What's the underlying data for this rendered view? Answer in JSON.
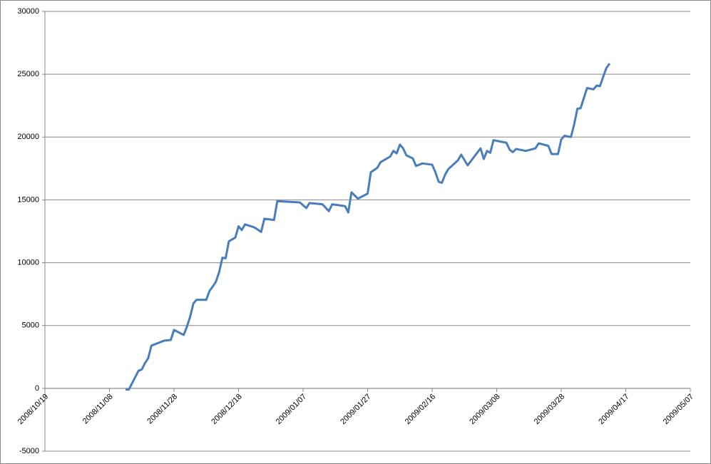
{
  "chart_data": {
    "type": "line",
    "x": [
      "2008/11/13",
      "2008/11/14",
      "2008/11/17",
      "2008/11/18",
      "2008/11/19",
      "2008/11/20",
      "2008/11/21",
      "2008/11/25",
      "2008/11/27",
      "2008/11/28",
      "2008/12/01",
      "2008/12/02",
      "2008/12/03",
      "2008/12/04",
      "2008/12/05",
      "2008/12/08",
      "2008/12/09",
      "2008/12/10",
      "2008/12/11",
      "2008/12/12",
      "2008/12/13",
      "2008/12/14",
      "2008/12/15",
      "2008/12/17",
      "2008/12/18",
      "2008/12/19",
      "2008/12/20",
      "2008/12/23",
      "2008/12/25",
      "2008/12/26",
      "2008/12/29",
      "2008/12/30",
      "2009/01/06",
      "2009/01/08",
      "2009/01/09",
      "2009/01/13",
      "2009/01/15",
      "2009/01/16",
      "2009/01/20",
      "2009/01/21",
      "2009/01/22",
      "2009/01/24",
      "2009/01/27",
      "2009/01/28",
      "2009/01/30",
      "2009/01/31",
      "2009/02/03",
      "2009/02/04",
      "2009/02/05",
      "2009/02/06",
      "2009/02/07",
      "2009/02/08",
      "2009/02/10",
      "2009/02/11",
      "2009/02/13",
      "2009/02/16",
      "2009/02/17",
      "2009/02/18",
      "2009/02/19",
      "2009/02/20",
      "2009/02/21",
      "2009/02/24",
      "2009/02/25",
      "2009/02/27",
      "2009/03/03",
      "2009/03/04",
      "2009/03/05",
      "2009/03/06",
      "2009/03/07",
      "2009/03/11",
      "2009/03/12",
      "2009/03/13",
      "2009/03/14",
      "2009/03/17",
      "2009/03/20",
      "2009/03/21",
      "2009/03/24",
      "2009/03/25",
      "2009/03/27",
      "2009/03/28",
      "2009/03/29",
      "2009/03/31",
      "2009/04/01",
      "2009/04/02",
      "2009/04/03",
      "2009/04/05",
      "2009/04/07",
      "2009/04/08",
      "2009/04/09",
      "2009/04/10",
      "2009/04/11",
      "2009/04/12"
    ],
    "series": [
      {
        "color": "#4a7ebb",
        "values": [
          -100,
          -100,
          1400,
          1500,
          2000,
          2400,
          3400,
          3800,
          3850,
          4650,
          4250,
          4900,
          5700,
          6750,
          7050,
          7050,
          7750,
          8100,
          8500,
          9250,
          10400,
          10350,
          11700,
          12000,
          12900,
          12600,
          13050,
          12800,
          12450,
          13500,
          13400,
          14900,
          14800,
          14350,
          14750,
          14650,
          14100,
          14650,
          14500,
          14000,
          15600,
          15100,
          15500,
          17200,
          17550,
          18000,
          18450,
          18900,
          18700,
          19400,
          19100,
          18550,
          18300,
          17700,
          17900,
          17800,
          17200,
          16450,
          16350,
          17000,
          17450,
          18150,
          18600,
          17750,
          19100,
          18250,
          18900,
          18750,
          19750,
          19550,
          19000,
          18800,
          19050,
          18900,
          19100,
          19500,
          19300,
          18650,
          18650,
          19800,
          20100,
          20000,
          21000,
          22250,
          22300,
          23900,
          23800,
          24100,
          24050,
          24800,
          25500,
          25850
        ]
      }
    ],
    "xlim": [
      "2008/10/19",
      "2009/05/07"
    ],
    "xticks": [
      "2008/10/19",
      "2008/11/08",
      "2008/11/28",
      "2008/12/18",
      "2009/01/07",
      "2009/01/27",
      "2009/02/16",
      "2009/03/08",
      "2009/03/28",
      "2009/04/17",
      "2009/05/07"
    ],
    "ylim": [
      -5000,
      30000
    ],
    "yticks": [
      -5000,
      0,
      5000,
      10000,
      15000,
      20000,
      25000,
      30000
    ],
    "grid": true
  }
}
